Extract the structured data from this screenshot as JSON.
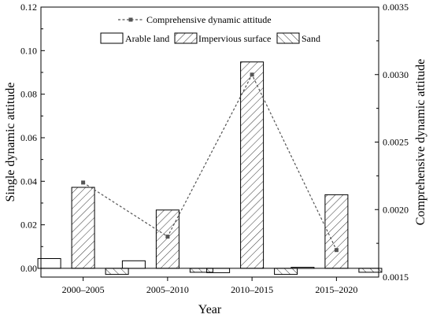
{
  "chart_data": {
    "type": "bar",
    "categories": [
      "2000–2005",
      "2005–2010",
      "2010–2015",
      "2015–2020"
    ],
    "series": [
      {
        "name": "Arable land",
        "axis": "left",
        "values": [
          0.0045,
          0.0035,
          -0.002,
          0.0005
        ],
        "pattern": "none"
      },
      {
        "name": "Impervious surface",
        "axis": "left",
        "values": [
          0.0372,
          0.0268,
          0.0948,
          0.0338
        ],
        "pattern": "diagonal-right"
      },
      {
        "name": "Sand",
        "axis": "left",
        "values": [
          -0.0028,
          -0.0018,
          -0.0028,
          -0.0018
        ],
        "pattern": "diagonal-left"
      },
      {
        "name": "Comprehensive dynamic attitude",
        "axis": "right",
        "type": "line",
        "style": "dashed",
        "marker": "square",
        "values": [
          0.0022,
          0.0018,
          0.003,
          0.0017
        ]
      }
    ],
    "xlabel": "Year",
    "ylabel": "Single dynamic attitude",
    "ylabel_right": "Comprehensive dynamic attitude",
    "ylim": [
      -0.004,
      0.12
    ],
    "ylim_right": [
      0.0015,
      0.0035
    ],
    "yticks": [
      "0.00",
      "0.02",
      "0.04",
      "0.06",
      "0.08",
      "0.10",
      "0.12"
    ],
    "yticks_values": [
      0,
      0.02,
      0.04,
      0.06,
      0.08,
      0.1,
      0.12
    ],
    "yticks_right": [
      "0.0015",
      "0.0020",
      "0.0025",
      "0.0030",
      "0.0035"
    ],
    "yticks_right_values": [
      0.0015,
      0.002,
      0.0025,
      0.003,
      0.0035
    ],
    "grid": false,
    "legend_placement": "top-center",
    "colors": {
      "axis": "#000000",
      "bar_stroke": "#000000",
      "line": "#555555",
      "marker": "#555555"
    }
  }
}
